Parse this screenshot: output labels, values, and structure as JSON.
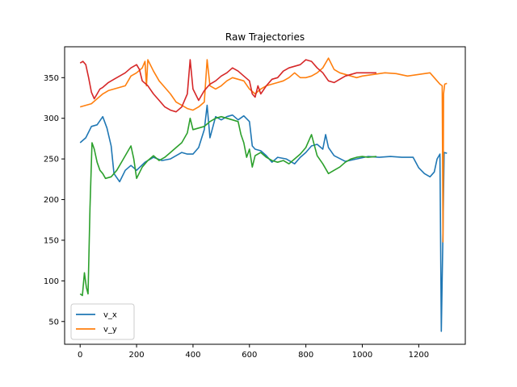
{
  "chart_data": {
    "type": "line",
    "title": "Raw Trajectories",
    "xlabel": "",
    "ylabel": "",
    "xlim": [
      -55,
      1365
    ],
    "ylim": [
      22,
      388
    ],
    "xticks": [
      0,
      200,
      400,
      600,
      800,
      1000,
      1200
    ],
    "yticks": [
      50,
      100,
      150,
      200,
      250,
      300,
      350
    ],
    "grid": false,
    "legend": {
      "placement": "lower-left",
      "entries": [
        "v_x",
        "v_y"
      ]
    },
    "series": [
      {
        "name": "v_x",
        "color": "#1f77b4",
        "points": [
          [
            0,
            270
          ],
          [
            20,
            276
          ],
          [
            40,
            290
          ],
          [
            60,
            292
          ],
          [
            80,
            302
          ],
          [
            95,
            288
          ],
          [
            110,
            266
          ],
          [
            120,
            232
          ],
          [
            140,
            222
          ],
          [
            160,
            236
          ],
          [
            180,
            242
          ],
          [
            200,
            236
          ],
          [
            230,
            246
          ],
          [
            260,
            252
          ],
          [
            290,
            248
          ],
          [
            320,
            250
          ],
          [
            340,
            254
          ],
          [
            360,
            258
          ],
          [
            380,
            256
          ],
          [
            400,
            256
          ],
          [
            420,
            264
          ],
          [
            440,
            286
          ],
          [
            450,
            316
          ],
          [
            460,
            276
          ],
          [
            480,
            302
          ],
          [
            500,
            298
          ],
          [
            520,
            302
          ],
          [
            540,
            304
          ],
          [
            560,
            298
          ],
          [
            580,
            303
          ],
          [
            600,
            296
          ],
          [
            610,
            266
          ],
          [
            620,
            262
          ],
          [
            640,
            260
          ],
          [
            660,
            254
          ],
          [
            680,
            246
          ],
          [
            700,
            252
          ],
          [
            730,
            250
          ],
          [
            760,
            244
          ],
          [
            780,
            252
          ],
          [
            800,
            258
          ],
          [
            820,
            266
          ],
          [
            840,
            268
          ],
          [
            860,
            262
          ],
          [
            870,
            280
          ],
          [
            880,
            264
          ],
          [
            900,
            254
          ],
          [
            940,
            247
          ],
          [
            980,
            250
          ],
          [
            1020,
            253
          ],
          [
            1060,
            252
          ],
          [
            1100,
            253
          ],
          [
            1140,
            252
          ],
          [
            1180,
            252
          ],
          [
            1200,
            239
          ],
          [
            1220,
            232
          ],
          [
            1240,
            228
          ],
          [
            1255,
            234
          ],
          [
            1265,
            250
          ],
          [
            1275,
            256
          ],
          [
            1280,
            38
          ],
          [
            1285,
            145
          ],
          [
            1290,
            258
          ],
          [
            1300,
            257
          ]
        ]
      },
      {
        "name": "v_y",
        "color": "#ff7f0e",
        "points": [
          [
            0,
            314
          ],
          [
            20,
            316
          ],
          [
            40,
            318
          ],
          [
            60,
            324
          ],
          [
            80,
            330
          ],
          [
            100,
            334
          ],
          [
            120,
            336
          ],
          [
            140,
            338
          ],
          [
            160,
            340
          ],
          [
            180,
            352
          ],
          [
            200,
            356
          ],
          [
            220,
            362
          ],
          [
            230,
            370
          ],
          [
            235,
            340
          ],
          [
            240,
            372
          ],
          [
            260,
            358
          ],
          [
            280,
            346
          ],
          [
            300,
            338
          ],
          [
            320,
            330
          ],
          [
            340,
            320
          ],
          [
            360,
            316
          ],
          [
            380,
            312
          ],
          [
            400,
            310
          ],
          [
            420,
            314
          ],
          [
            440,
            320
          ],
          [
            450,
            372
          ],
          [
            460,
            340
          ],
          [
            480,
            336
          ],
          [
            500,
            340
          ],
          [
            520,
            346
          ],
          [
            540,
            350
          ],
          [
            560,
            348
          ],
          [
            580,
            346
          ],
          [
            600,
            336
          ],
          [
            620,
            330
          ],
          [
            640,
            336
          ],
          [
            660,
            340
          ],
          [
            680,
            342
          ],
          [
            700,
            344
          ],
          [
            720,
            346
          ],
          [
            740,
            350
          ],
          [
            760,
            356
          ],
          [
            780,
            350
          ],
          [
            800,
            350
          ],
          [
            820,
            352
          ],
          [
            840,
            356
          ],
          [
            860,
            362
          ],
          [
            880,
            374
          ],
          [
            900,
            360
          ],
          [
            920,
            356
          ],
          [
            940,
            354
          ],
          [
            960,
            352
          ],
          [
            980,
            350
          ],
          [
            1000,
            352
          ],
          [
            1040,
            354
          ],
          [
            1080,
            356
          ],
          [
            1120,
            355
          ],
          [
            1160,
            352
          ],
          [
            1200,
            354
          ],
          [
            1240,
            356
          ],
          [
            1260,
            348
          ],
          [
            1275,
            342
          ],
          [
            1283,
            340
          ],
          [
            1286,
            148
          ],
          [
            1288,
            330
          ],
          [
            1292,
            342
          ],
          [
            1300,
            343
          ]
        ]
      },
      {
        "name": "",
        "color": "#2ca02c",
        "points": [
          [
            0,
            84
          ],
          [
            8,
            82
          ],
          [
            15,
            110
          ],
          [
            22,
            92
          ],
          [
            28,
            84
          ],
          [
            35,
            190
          ],
          [
            42,
            270
          ],
          [
            50,
            262
          ],
          [
            60,
            246
          ],
          [
            70,
            236
          ],
          [
            80,
            232
          ],
          [
            90,
            226
          ],
          [
            110,
            228
          ],
          [
            130,
            236
          ],
          [
            150,
            248
          ],
          [
            170,
            260
          ],
          [
            180,
            266
          ],
          [
            190,
            250
          ],
          [
            200,
            226
          ],
          [
            220,
            240
          ],
          [
            240,
            248
          ],
          [
            260,
            254
          ],
          [
            280,
            248
          ],
          [
            300,
            252
          ],
          [
            320,
            258
          ],
          [
            340,
            264
          ],
          [
            360,
            270
          ],
          [
            380,
            282
          ],
          [
            390,
            300
          ],
          [
            400,
            286
          ],
          [
            420,
            288
          ],
          [
            440,
            290
          ],
          [
            460,
            296
          ],
          [
            480,
            300
          ],
          [
            500,
            302
          ],
          [
            520,
            300
          ],
          [
            540,
            298
          ],
          [
            560,
            296
          ],
          [
            570,
            280
          ],
          [
            580,
            270
          ],
          [
            590,
            252
          ],
          [
            600,
            262
          ],
          [
            610,
            240
          ],
          [
            620,
            254
          ],
          [
            640,
            258
          ],
          [
            660,
            252
          ],
          [
            680,
            248
          ],
          [
            700,
            246
          ],
          [
            720,
            248
          ],
          [
            740,
            244
          ],
          [
            760,
            250
          ],
          [
            780,
            256
          ],
          [
            800,
            264
          ],
          [
            820,
            280
          ],
          [
            840,
            254
          ],
          [
            860,
            244
          ],
          [
            880,
            232
          ],
          [
            900,
            236
          ],
          [
            920,
            240
          ],
          [
            940,
            246
          ],
          [
            960,
            250
          ],
          [
            980,
            252
          ],
          [
            1000,
            253
          ],
          [
            1020,
            252
          ],
          [
            1050,
            253
          ]
        ]
      },
      {
        "name": "",
        "color": "#d62728",
        "points": [
          [
            0,
            368
          ],
          [
            10,
            370
          ],
          [
            20,
            366
          ],
          [
            30,
            350
          ],
          [
            40,
            332
          ],
          [
            50,
            324
          ],
          [
            60,
            330
          ],
          [
            70,
            336
          ],
          [
            80,
            338
          ],
          [
            100,
            344
          ],
          [
            120,
            348
          ],
          [
            140,
            352
          ],
          [
            160,
            356
          ],
          [
            180,
            362
          ],
          [
            200,
            366
          ],
          [
            210,
            360
          ],
          [
            220,
            346
          ],
          [
            240,
            340
          ],
          [
            260,
            330
          ],
          [
            280,
            322
          ],
          [
            300,
            314
          ],
          [
            320,
            310
          ],
          [
            340,
            308
          ],
          [
            360,
            314
          ],
          [
            380,
            330
          ],
          [
            390,
            372
          ],
          [
            400,
            336
          ],
          [
            420,
            322
          ],
          [
            440,
            334
          ],
          [
            460,
            342
          ],
          [
            480,
            346
          ],
          [
            500,
            352
          ],
          [
            520,
            356
          ],
          [
            540,
            362
          ],
          [
            560,
            358
          ],
          [
            580,
            352
          ],
          [
            600,
            346
          ],
          [
            610,
            330
          ],
          [
            620,
            326
          ],
          [
            630,
            340
          ],
          [
            640,
            330
          ],
          [
            660,
            340
          ],
          [
            680,
            348
          ],
          [
            700,
            350
          ],
          [
            720,
            358
          ],
          [
            740,
            362
          ],
          [
            760,
            364
          ],
          [
            780,
            366
          ],
          [
            800,
            372
          ],
          [
            820,
            370
          ],
          [
            840,
            362
          ],
          [
            860,
            356
          ],
          [
            880,
            346
          ],
          [
            900,
            344
          ],
          [
            920,
            348
          ],
          [
            940,
            352
          ],
          [
            960,
            354
          ],
          [
            980,
            356
          ],
          [
            1000,
            356
          ],
          [
            1050,
            356
          ]
        ]
      }
    ]
  }
}
